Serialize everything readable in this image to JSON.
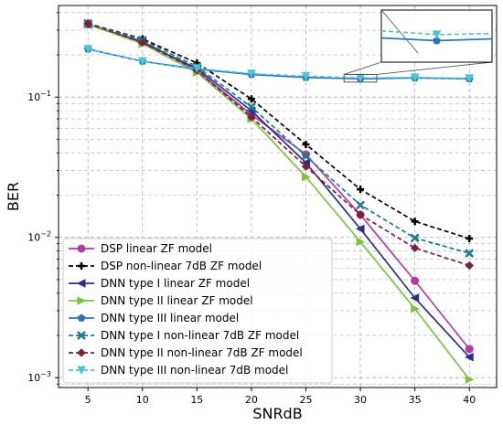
{
  "chart_data": {
    "type": "line",
    "xlabel": "SNRdB",
    "ylabel": "BER",
    "x": [
      5,
      10,
      15,
      20,
      25,
      30,
      35,
      40
    ],
    "xlim": [
      2.3,
      42.5
    ],
    "ylim": [
      0.00085,
      0.45
    ],
    "yscale": "log",
    "grid": true,
    "legend_position": "lower-left",
    "x_ticks": [
      5,
      10,
      15,
      20,
      25,
      30,
      35,
      40
    ],
    "y_ticks": [
      {
        "value": 0.001,
        "base": "10",
        "exp": "−3"
      },
      {
        "value": 0.01,
        "base": "10",
        "exp": "−2"
      },
      {
        "value": 0.1,
        "base": "10",
        "exp": "−1"
      }
    ],
    "inset": {
      "description": "zoom of DNN type III curves near SNR 30",
      "x_range": [
        28.5,
        31.5
      ],
      "y_range": [
        0.128,
        0.145
      ]
    },
    "series": [
      {
        "name": "DSP linear ZF model",
        "color": "#b03aa6",
        "dash": "solid",
        "marker": "circle",
        "values": [
          0.33,
          0.25,
          0.155,
          0.075,
          0.039,
          0.0145,
          0.0049,
          0.0016
        ]
      },
      {
        "name": "DSP non-linear 7dB ZF model",
        "color": "#000000",
        "dash": "dashed",
        "marker": "plus",
        "values": [
          0.335,
          0.26,
          0.175,
          0.097,
          0.046,
          0.022,
          0.013,
          0.0098
        ]
      },
      {
        "name": "DNN type I linear ZF model",
        "color": "#2a2e8a",
        "dash": "solid",
        "marker": "triangle-left",
        "values": [
          0.33,
          0.245,
          0.16,
          0.08,
          0.034,
          0.0115,
          0.0037,
          0.0014
        ]
      },
      {
        "name": "DNN type II linear ZF model",
        "color": "#7ec242",
        "dash": "solid",
        "marker": "triangle-right",
        "values": [
          0.33,
          0.24,
          0.15,
          0.07,
          0.027,
          0.0093,
          0.0031,
          0.00097
        ]
      },
      {
        "name": "DNN type III linear model",
        "color": "#2f72b8",
        "dash": "solid",
        "marker": "pentagon",
        "values": [
          0.22,
          0.18,
          0.158,
          0.145,
          0.138,
          0.135,
          0.137,
          0.135
        ]
      },
      {
        "name": "DNN type I non-linear 7dB ZF model",
        "color": "#1c7a8a",
        "dash": "dashed",
        "marker": "x",
        "values": [
          0.335,
          0.255,
          0.165,
          0.085,
          0.038,
          0.017,
          0.0099,
          0.0077
        ]
      },
      {
        "name": "DNN type II non-linear 7dB ZF model",
        "color": "#7a1f3d",
        "dash": "dashed",
        "marker": "diamond",
        "values": [
          0.335,
          0.245,
          0.155,
          0.072,
          0.032,
          0.0145,
          0.0084,
          0.0063
        ]
      },
      {
        "name": "DNN type III non-linear 7dB model",
        "color": "#4fc3d6",
        "dash": "dashed",
        "marker": "triangle-down",
        "values": [
          0.22,
          0.18,
          0.16,
          0.147,
          0.141,
          0.137,
          0.138,
          0.136
        ]
      }
    ]
  }
}
